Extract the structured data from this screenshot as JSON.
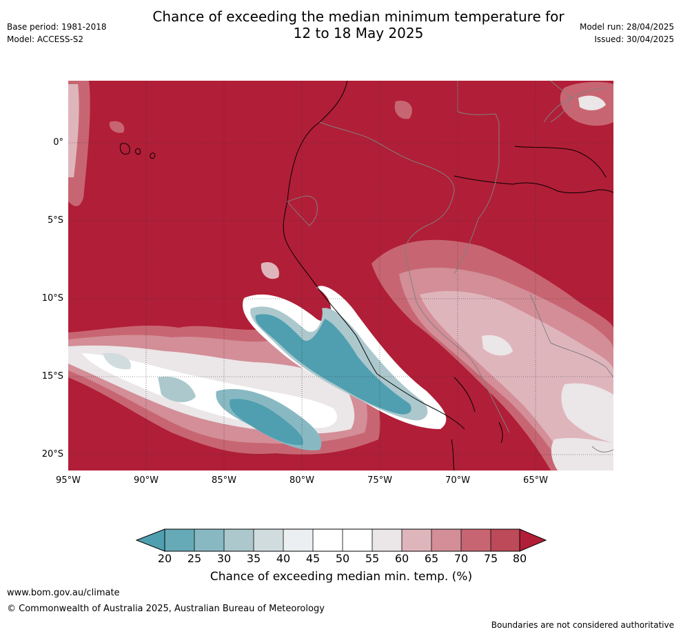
{
  "header": {
    "title_line1": "Chance of exceeding the median minimum temperature for",
    "title_line2": "12 to 18 May 2025",
    "base_period": "Base period: 1981-2018",
    "model": "Model: ACCESS-S2",
    "model_run": "Model run: 28/04/2025",
    "issued": "Issued: 30/04/2025"
  },
  "map": {
    "lat_labels": [
      "0°",
      "5°S",
      "10°S",
      "15°S",
      "20°S"
    ],
    "lon_labels": [
      "95°W",
      "90°W",
      "85°W",
      "80°W",
      "75°W",
      "70°W",
      "65°W"
    ],
    "background_color": "#b11e37",
    "land_outline_color": "#000000",
    "border_color": "#808080"
  },
  "colorbar": {
    "ticks": [
      "20",
      "25",
      "30",
      "35",
      "40",
      "45",
      "50",
      "55",
      "60",
      "65",
      "70",
      "75",
      "80"
    ],
    "colors": [
      "#4f9fb0",
      "#66aab8",
      "#88b9c3",
      "#acc8cd",
      "#d1dcdf",
      "#eceff1",
      "#ffffff",
      "#ffffff",
      "#ebe6e7",
      "#dfb5bc",
      "#d38e98",
      "#c76672",
      "#bc4a58",
      "#b11e37"
    ],
    "label": "Chance of exceeding median min. temp. (%)"
  },
  "footer": {
    "url": "www.bom.gov.au/climate",
    "copyright": "© Commonwealth of Australia 2025, Australian Bureau of Meteorology",
    "disclaimer": "Boundaries are not considered authoritative"
  }
}
